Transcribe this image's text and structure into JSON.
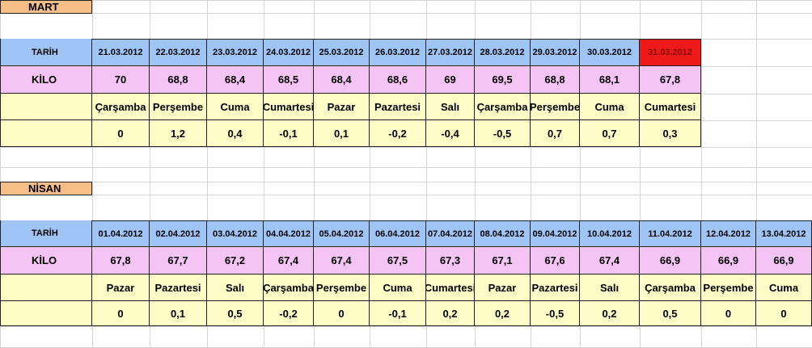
{
  "sheet": {
    "mart": {
      "title": "MART",
      "date_label": "TARİH",
      "kilo_label": "KİLO",
      "dates": [
        "21.03.2012",
        "22.03.2012",
        "23.03.2012",
        "24.03.2012",
        "25.03.2012",
        "26.03.2012",
        "27.03.2012",
        "28.03.2012",
        "29.03.2012",
        "30.03.2012",
        "31.03.2012"
      ],
      "kilos": [
        "70",
        "68,8",
        "68,4",
        "68,5",
        "68,4",
        "68,6",
        "69",
        "69,5",
        "68,8",
        "68,1",
        "67,8"
      ],
      "days": [
        "Çarşamba",
        "Perşembe",
        "Cuma",
        "Cumartesi",
        "Pazar",
        "Pazartesi",
        "Salı",
        "Çarşamba",
        "Perşembe",
        "Cuma",
        "Cumartesi"
      ],
      "diffs": [
        "0",
        "1,2",
        "0,4",
        "-0,1",
        "0,1",
        "-0,2",
        "-0,4",
        "-0,5",
        "0,7",
        "0,7",
        "0,3"
      ],
      "highlight_color": "#ee1a1a"
    },
    "nisan": {
      "title": "NİSAN",
      "date_label": "TARİH",
      "kilo_label": "KİLO",
      "dates": [
        "01.04.2012",
        "02.04.2012",
        "03.04.2012",
        "04.04.2012",
        "05.04.2012",
        "06.04.2012",
        "07.04.2012",
        "08.04.2012",
        "09.04.2012",
        "10.04.2012",
        "11.04.2012",
        "12.04.2012",
        "13.04.2012"
      ],
      "kilos": [
        "67,8",
        "67,7",
        "67,2",
        "67,4",
        "67,4",
        "67,5",
        "67,3",
        "67,1",
        "67,6",
        "67,4",
        "66,9",
        "66,9",
        "66,9"
      ],
      "days": [
        "Pazar",
        "Pazartesi",
        "Salı",
        "Çarşamba",
        "Perşembe",
        "Cuma",
        "Cumartesi",
        "Pazar",
        "Pazartesi",
        "Salı",
        "Çarşamba",
        "Perşembe",
        "Cuma"
      ],
      "diffs": [
        "0",
        "0,1",
        "0,5",
        "-0,2",
        "0",
        "-0,1",
        "0,2",
        "0,2",
        "-0,5",
        "0,2",
        "0,5",
        "0",
        "0"
      ]
    },
    "colors": {
      "title_bg": "#f7be88",
      "date_bg": "#9fc5f7",
      "kilo_bg": "#f3c4f4",
      "day_bg": "#fdfcc6"
    }
  }
}
